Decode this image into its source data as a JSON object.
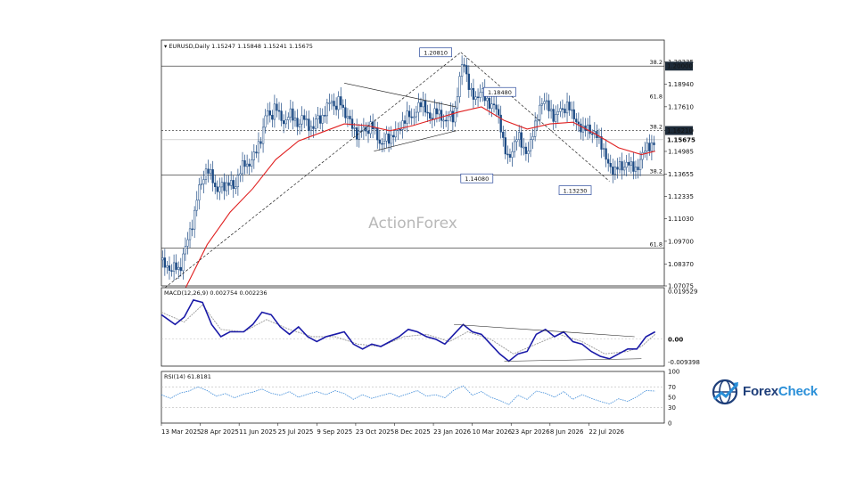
{
  "chart_data": {
    "type": "candlestick",
    "main": {
      "symbol_header": "EURUSD,Daily",
      "ohlc_header": [
        "1.15247",
        "1.15848",
        "1.15241",
        "1.15675"
      ],
      "watermark": "ActionForex",
      "ylim": [
        1.07075,
        1.2153
      ],
      "price_ticks": [
        "1.20235",
        "1.18940",
        "1.17610",
        "1.16220",
        "1.14985",
        "1.13655",
        "1.12335",
        "1.11030",
        "1.09700",
        "1.08370",
        "1.07075"
      ],
      "last_price": "1.15675",
      "level_boxes": [
        {
          "value": 1.2,
          "label": "1.20000"
        },
        {
          "value": 1.1621,
          "label": "1.16210"
        }
      ],
      "horizontal_lines": [
        1.2,
        1.1621,
        1.15675,
        1.136,
        1.093
      ],
      "fib_labels": [
        {
          "value": 1.2,
          "label": "38.2"
        },
        {
          "value": 1.18,
          "label": "61.8"
        },
        {
          "value": 1.1621,
          "label": "38.2"
        },
        {
          "value": 1.136,
          "label": "38.2"
        },
        {
          "value": 1.093,
          "label": "61.8"
        }
      ],
      "annotations": [
        {
          "value": 1.2081,
          "label": "1.20810"
        },
        {
          "value": 1.1848,
          "label": "1.18480"
        },
        {
          "value": 1.1408,
          "label": "1.14080"
        },
        {
          "value": 1.1323,
          "label": "1.13230"
        }
      ],
      "close_path": [
        [
          0,
          1.086
        ],
        [
          4,
          1.079
        ],
        [
          6,
          1.084
        ],
        [
          8,
          1.078
        ],
        [
          10,
          1.092
        ],
        [
          12,
          1.101
        ],
        [
          14,
          1.108
        ],
        [
          16,
          1.128
        ],
        [
          18,
          1.132
        ],
        [
          20,
          1.14
        ],
        [
          22,
          1.136
        ],
        [
          24,
          1.125
        ],
        [
          26,
          1.131
        ],
        [
          28,
          1.128
        ],
        [
          30,
          1.133
        ],
        [
          32,
          1.127
        ],
        [
          34,
          1.137
        ],
        [
          36,
          1.144
        ],
        [
          38,
          1.14
        ],
        [
          40,
          1.147
        ],
        [
          42,
          1.152
        ],
        [
          44,
          1.158
        ],
        [
          46,
          1.176
        ],
        [
          48,
          1.168
        ],
        [
          50,
          1.178
        ],
        [
          52,
          1.17
        ],
        [
          54,
          1.165
        ],
        [
          56,
          1.174
        ],
        [
          58,
          1.169
        ],
        [
          60,
          1.164
        ],
        [
          62,
          1.172
        ],
        [
          64,
          1.165
        ],
        [
          66,
          1.162
        ],
        [
          68,
          1.171
        ],
        [
          70,
          1.167
        ],
        [
          72,
          1.175
        ],
        [
          74,
          1.181
        ],
        [
          76,
          1.174
        ],
        [
          78,
          1.182
        ],
        [
          80,
          1.171
        ],
        [
          82,
          1.17
        ],
        [
          84,
          1.163
        ],
        [
          86,
          1.158
        ],
        [
          88,
          1.165
        ],
        [
          90,
          1.16
        ],
        [
          92,
          1.167
        ],
        [
          94,
          1.16
        ],
        [
          96,
          1.152
        ],
        [
          98,
          1.159
        ],
        [
          100,
          1.156
        ],
        [
          102,
          1.161
        ],
        [
          104,
          1.163
        ],
        [
          106,
          1.167
        ],
        [
          108,
          1.173
        ],
        [
          110,
          1.168
        ],
        [
          112,
          1.176
        ],
        [
          114,
          1.179
        ],
        [
          116,
          1.173
        ],
        [
          118,
          1.168
        ],
        [
          120,
          1.175
        ],
        [
          122,
          1.171
        ],
        [
          124,
          1.166
        ],
        [
          126,
          1.173
        ],
        [
          128,
          1.168
        ],
        [
          130,
          1.189
        ],
        [
          132,
          1.205
        ],
        [
          134,
          1.19
        ],
        [
          136,
          1.183
        ],
        [
          138,
          1.18
        ],
        [
          140,
          1.187
        ],
        [
          142,
          1.18
        ],
        [
          144,
          1.176
        ],
        [
          146,
          1.178
        ],
        [
          148,
          1.167
        ],
        [
          150,
          1.152
        ],
        [
          152,
          1.145
        ],
        [
          154,
          1.152
        ],
        [
          156,
          1.161
        ],
        [
          158,
          1.152
        ],
        [
          160,
          1.148
        ],
        [
          162,
          1.158
        ],
        [
          164,
          1.168
        ],
        [
          166,
          1.178
        ],
        [
          168,
          1.18
        ],
        [
          170,
          1.174
        ],
        [
          172,
          1.168
        ],
        [
          174,
          1.176
        ],
        [
          176,
          1.173
        ],
        [
          178,
          1.178
        ],
        [
          180,
          1.171
        ],
        [
          182,
          1.166
        ],
        [
          184,
          1.162
        ],
        [
          186,
          1.165
        ],
        [
          188,
          1.16
        ],
        [
          190,
          1.161
        ],
        [
          192,
          1.155
        ],
        [
          194,
          1.148
        ],
        [
          196,
          1.141
        ],
        [
          198,
          1.137
        ],
        [
          200,
          1.143
        ],
        [
          202,
          1.139
        ],
        [
          204,
          1.144
        ],
        [
          206,
          1.141
        ],
        [
          208,
          1.138
        ],
        [
          210,
          1.147
        ],
        [
          212,
          1.153
        ],
        [
          214,
          1.152
        ],
        [
          216,
          1.156
        ]
      ],
      "ma_path": [
        [
          10,
          1.068
        ],
        [
          20,
          1.095
        ],
        [
          30,
          1.114
        ],
        [
          40,
          1.128
        ],
        [
          50,
          1.145
        ],
        [
          60,
          1.156
        ],
        [
          70,
          1.161
        ],
        [
          80,
          1.166
        ],
        [
          90,
          1.165
        ],
        [
          100,
          1.162
        ],
        [
          110,
          1.165
        ],
        [
          120,
          1.169
        ],
        [
          130,
          1.173
        ],
        [
          140,
          1.176
        ],
        [
          150,
          1.168
        ],
        [
          160,
          1.163
        ],
        [
          170,
          1.166
        ],
        [
          180,
          1.167
        ],
        [
          190,
          1.16
        ],
        [
          200,
          1.152
        ],
        [
          210,
          1.148
        ],
        [
          216,
          1.15
        ]
      ],
      "trend_lines": [
        {
          "from": [
            0,
            1.068
          ],
          "to": [
            131,
            1.2081
          ],
          "dash": true
        },
        {
          "from": [
            131,
            1.2081
          ],
          "to": [
            196,
            1.1323
          ],
          "dash": true
        },
        {
          "from": [
            80,
            1.19
          ],
          "to": [
            129,
            1.176
          ],
          "dash": false
        },
        {
          "from": [
            93,
            1.15
          ],
          "to": [
            129,
            1.162
          ],
          "dash": false
        }
      ]
    },
    "macd": {
      "header": "MACD(12,26,9) 0.002754 0.002236",
      "ylim": [
        -0.011,
        0.021
      ],
      "ticks": [
        "0.019529",
        "0.00",
        "-0.009398"
      ],
      "macd_path": [
        [
          0,
          0.01
        ],
        [
          6,
          0.006
        ],
        [
          10,
          0.009
        ],
        [
          14,
          0.016
        ],
        [
          18,
          0.015
        ],
        [
          22,
          0.006
        ],
        [
          26,
          0.001
        ],
        [
          30,
          0.003
        ],
        [
          36,
          0.003
        ],
        [
          40,
          0.006
        ],
        [
          44,
          0.011
        ],
        [
          48,
          0.01
        ],
        [
          52,
          0.005
        ],
        [
          56,
          0.002
        ],
        [
          60,
          0.005
        ],
        [
          64,
          0.001
        ],
        [
          68,
          -0.001
        ],
        [
          72,
          0.001
        ],
        [
          76,
          0.002
        ],
        [
          80,
          0.003
        ],
        [
          84,
          -0.002
        ],
        [
          88,
          -0.004
        ],
        [
          92,
          -0.002
        ],
        [
          96,
          -0.003
        ],
        [
          100,
          -0.001
        ],
        [
          104,
          0.001
        ],
        [
          108,
          0.004
        ],
        [
          112,
          0.003
        ],
        [
          116,
          0.001
        ],
        [
          120,
          0.0
        ],
        [
          124,
          -0.002
        ],
        [
          128,
          0.002
        ],
        [
          132,
          0.006
        ],
        [
          136,
          0.003
        ],
        [
          140,
          0.002
        ],
        [
          144,
          -0.002
        ],
        [
          148,
          -0.006
        ],
        [
          152,
          -0.009
        ],
        [
          156,
          -0.006
        ],
        [
          160,
          -0.005
        ],
        [
          164,
          0.002
        ],
        [
          168,
          0.004
        ],
        [
          172,
          0.001
        ],
        [
          176,
          0.003
        ],
        [
          180,
          -0.001
        ],
        [
          184,
          -0.002
        ],
        [
          188,
          -0.005
        ],
        [
          192,
          -0.007
        ],
        [
          196,
          -0.008
        ],
        [
          200,
          -0.006
        ],
        [
          204,
          -0.004
        ],
        [
          208,
          -0.004
        ],
        [
          212,
          0.001
        ],
        [
          216,
          0.003
        ]
      ],
      "signal_path": [
        [
          0,
          0.011
        ],
        [
          10,
          0.007
        ],
        [
          18,
          0.014
        ],
        [
          26,
          0.004
        ],
        [
          36,
          0.003
        ],
        [
          46,
          0.008
        ],
        [
          56,
          0.004
        ],
        [
          66,
          0.001
        ],
        [
          76,
          0.001
        ],
        [
          86,
          -0.002
        ],
        [
          96,
          -0.003
        ],
        [
          106,
          0.001
        ],
        [
          116,
          0.002
        ],
        [
          126,
          -0.001
        ],
        [
          134,
          0.003
        ],
        [
          144,
          0.0
        ],
        [
          154,
          -0.006
        ],
        [
          164,
          -0.002
        ],
        [
          174,
          0.002
        ],
        [
          184,
          -0.001
        ],
        [
          194,
          -0.006
        ],
        [
          204,
          -0.005
        ],
        [
          210,
          -0.003
        ],
        [
          216,
          0.002
        ]
      ],
      "trend_lines": [
        {
          "from": [
            128,
            0.006
          ],
          "to": [
            207,
            0.001
          ]
        },
        {
          "from": [
            150,
            -0.009
          ],
          "to": [
            210,
            -0.008
          ]
        }
      ]
    },
    "rsi": {
      "header": "RSI(14) 61.8181",
      "ylim": [
        0,
        100
      ],
      "ticks": [
        "100",
        "70",
        "50",
        "30",
        "0"
      ],
      "rsi_path": [
        [
          0,
          55
        ],
        [
          4,
          48
        ],
        [
          8,
          58
        ],
        [
          12,
          62
        ],
        [
          16,
          70
        ],
        [
          20,
          63
        ],
        [
          24,
          52
        ],
        [
          28,
          57
        ],
        [
          32,
          49
        ],
        [
          36,
          56
        ],
        [
          40,
          60
        ],
        [
          44,
          66
        ],
        [
          48,
          58
        ],
        [
          52,
          54
        ],
        [
          56,
          61
        ],
        [
          60,
          50
        ],
        [
          64,
          56
        ],
        [
          68,
          61
        ],
        [
          72,
          55
        ],
        [
          76,
          63
        ],
        [
          80,
          57
        ],
        [
          84,
          46
        ],
        [
          88,
          55
        ],
        [
          92,
          48
        ],
        [
          96,
          53
        ],
        [
          100,
          58
        ],
        [
          104,
          51
        ],
        [
          108,
          57
        ],
        [
          112,
          63
        ],
        [
          116,
          52
        ],
        [
          120,
          55
        ],
        [
          124,
          49
        ],
        [
          128,
          64
        ],
        [
          132,
          72
        ],
        [
          136,
          54
        ],
        [
          140,
          61
        ],
        [
          144,
          50
        ],
        [
          148,
          44
        ],
        [
          152,
          36
        ],
        [
          156,
          54
        ],
        [
          160,
          46
        ],
        [
          164,
          62
        ],
        [
          168,
          58
        ],
        [
          172,
          50
        ],
        [
          176,
          61
        ],
        [
          180,
          46
        ],
        [
          184,
          55
        ],
        [
          188,
          48
        ],
        [
          192,
          42
        ],
        [
          196,
          37
        ],
        [
          200,
          47
        ],
        [
          204,
          42
        ],
        [
          208,
          51
        ],
        [
          212,
          63
        ],
        [
          216,
          62
        ]
      ]
    },
    "x_axis": {
      "range": [
        0,
        220
      ],
      "ticks": [
        {
          "pos": 0,
          "label": "13 Mar 2025"
        },
        {
          "pos": 17,
          "label": "28 Apr 2025"
        },
        {
          "pos": 34,
          "label": "11 Jun 2025"
        },
        {
          "pos": 51,
          "label": "25 Jul 2025"
        },
        {
          "pos": 68,
          "label": "9 Sep 2025"
        },
        {
          "pos": 85,
          "label": "23 Oct 2025"
        },
        {
          "pos": 102,
          "label": "8 Dec 2025"
        },
        {
          "pos": 119,
          "label": "23 Jan 2026"
        },
        {
          "pos": 136,
          "label": "10 Mar 2026"
        },
        {
          "pos": 153,
          "label": "23 Apr 2026"
        },
        {
          "pos": 170,
          "label": "8 Jun 2026"
        },
        {
          "pos": 187,
          "label": "22 Jul 2026"
        }
      ]
    },
    "colors": {
      "up": "#1c4a84",
      "down": "#1c4a84",
      "ma": "#e02020",
      "macd": "#1a1aa8",
      "signal": "#999999",
      "rsi": "#3c8ad8",
      "box_border": "#2b4a9c"
    }
  },
  "logo": {
    "text_a": "Forex",
    "text_b": "Check"
  }
}
